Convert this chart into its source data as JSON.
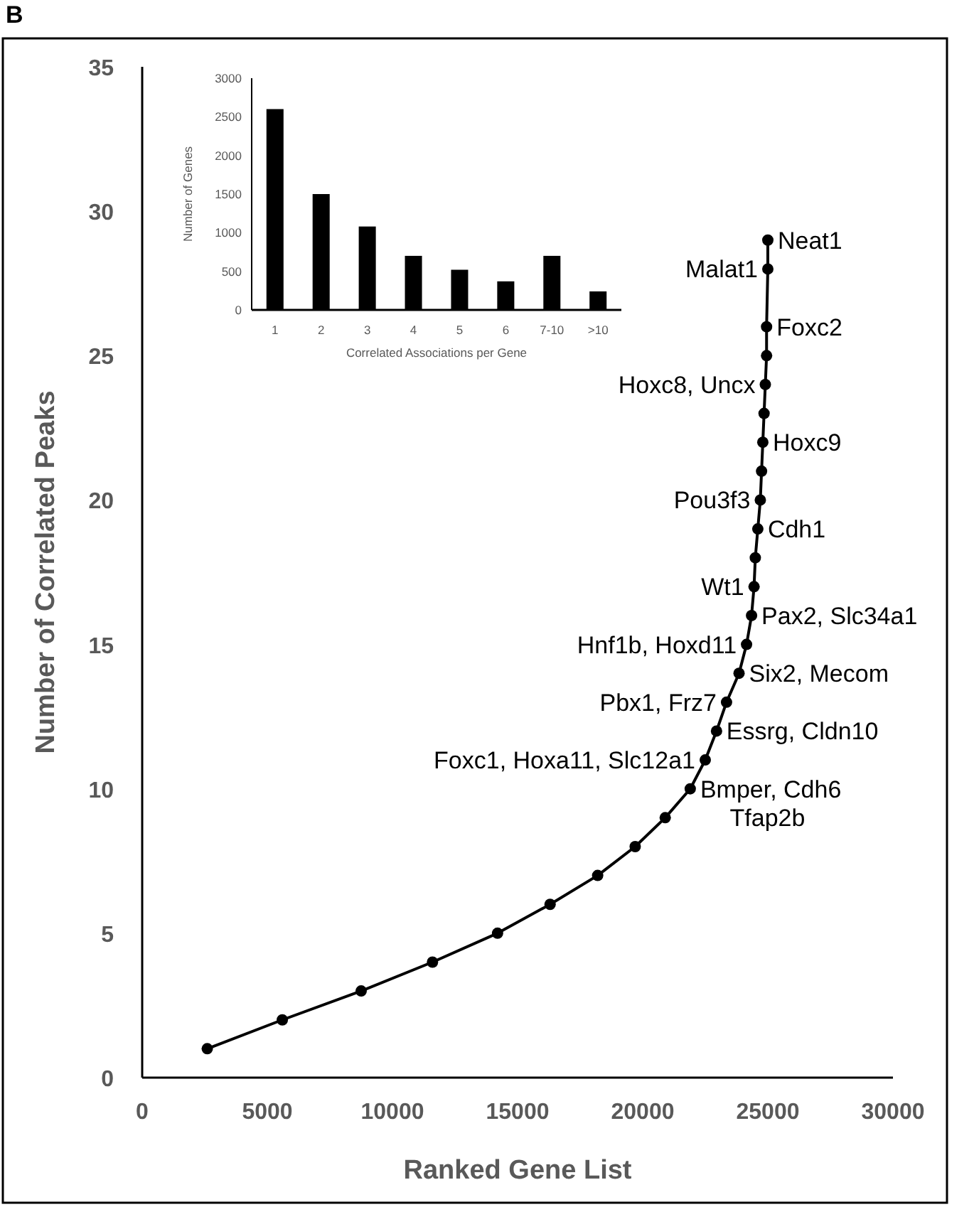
{
  "chart_data": [
    {
      "type": "line",
      "title": "B",
      "xlabel": "Ranked Gene List",
      "ylabel": "Number of Correlated Peaks",
      "xlim": [
        0,
        30000
      ],
      "xticks": [
        0,
        5000,
        10000,
        15000,
        20000,
        25000,
        30000
      ],
      "ylim": [
        0,
        35
      ],
      "yticks": [
        0,
        5,
        10,
        15,
        20,
        25,
        30,
        35
      ],
      "grid": false,
      "marker": "circle",
      "line_style": "solid",
      "series": [
        {
          "color": "#000000",
          "x": [
            2600,
            5600,
            8750,
            11600,
            14200,
            16300,
            18200,
            19700,
            20900,
            21900,
            22500,
            22950,
            23350,
            23850,
            24150,
            24350,
            24450,
            24500,
            24600,
            24700,
            24750,
            24800,
            24850,
            24900,
            24950,
            24950,
            25000,
            25000
          ],
          "values": [
            1,
            2,
            3,
            4,
            5,
            6,
            7,
            8,
            9,
            10,
            11,
            12,
            13,
            14,
            15,
            16,
            17,
            18,
            19,
            20,
            21,
            22,
            23,
            24,
            25,
            26,
            28,
            29
          ]
        }
      ],
      "annotations": [
        {
          "text": "Neat1",
          "x": 25000,
          "y": 29
        },
        {
          "text": "Malat1",
          "x": 25000,
          "y": 28
        },
        {
          "text": "Foxc2",
          "x": 24950,
          "y": 26
        },
        {
          "text": "Hoxc8, Uncx",
          "x": 24900,
          "y": 24
        },
        {
          "text": "Hoxc9",
          "x": 24800,
          "y": 22
        },
        {
          "text": "Pou3f3",
          "x": 24700,
          "y": 20
        },
        {
          "text": "Cdh1",
          "x": 24600,
          "y": 19
        },
        {
          "text": "Wt1",
          "x": 24450,
          "y": 17
        },
        {
          "text": "Pax2, Slc34a1",
          "x": 24350,
          "y": 16
        },
        {
          "text": "Hnf1b, Hoxd11",
          "x": 24150,
          "y": 15
        },
        {
          "text": "Six2, Mecom",
          "x": 23850,
          "y": 14
        },
        {
          "text": "Pbx1, Frz7",
          "x": 23350,
          "y": 13
        },
        {
          "text": "Essrg, Cldn10",
          "x": 22950,
          "y": 12
        },
        {
          "text": "Foxc1, Hoxa11, Slc12a1",
          "x": 22500,
          "y": 11
        },
        {
          "text": "Bmper, Cdh6",
          "x": 21900,
          "y": 10
        },
        {
          "text": "Tfap2b",
          "x": 21900,
          "y": 10
        }
      ]
    },
    {
      "type": "bar",
      "xlabel": "Correlated Associations per Gene",
      "ylabel": "Number of Genes",
      "categories": [
        "1",
        "2",
        "3",
        "4",
        "5",
        "6",
        "7-10",
        ">10"
      ],
      "values": [
        2600,
        1500,
        1080,
        700,
        520,
        370,
        700,
        240
      ],
      "color": "#000000",
      "ylim": [
        0,
        3000
      ],
      "yticks": [
        0,
        500,
        1000,
        1500,
        2000,
        2500,
        3000
      ],
      "grid": false
    }
  ]
}
